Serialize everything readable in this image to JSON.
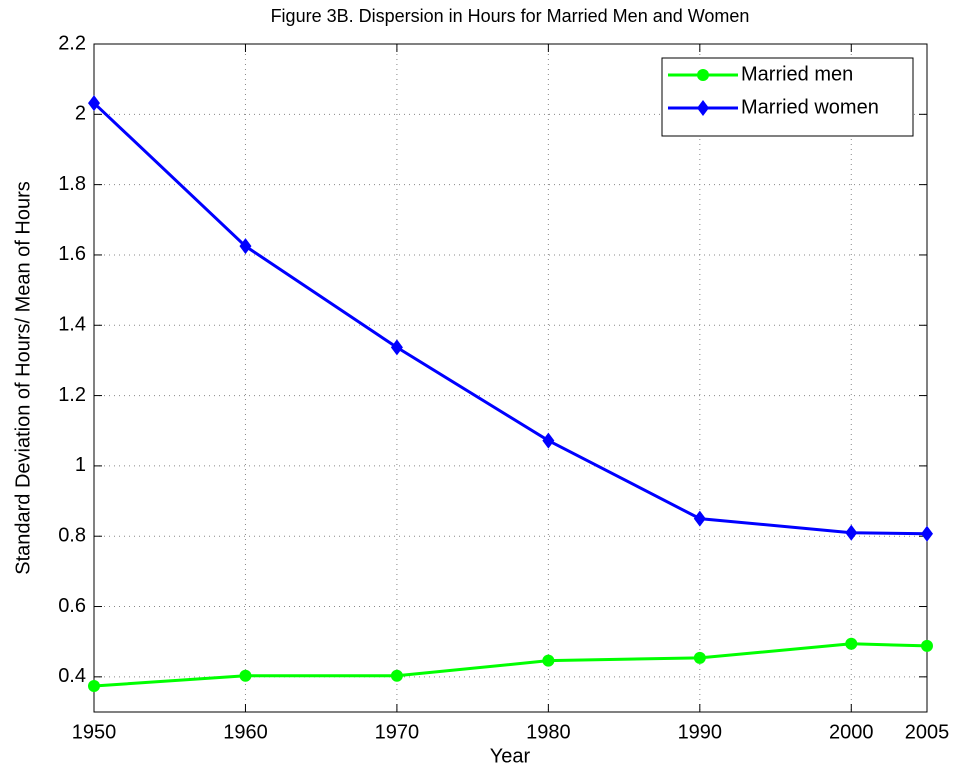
{
  "chart_data": {
    "type": "line",
    "title": "Figure 3B. Dispersion in Hours for Married Men and Women",
    "x_label": "Year",
    "y_label": "Standard Deviation of Hours/ Mean of Hours",
    "x": [
      1950,
      1960,
      1970,
      1980,
      1990,
      2000,
      2005
    ],
    "series": [
      {
        "name": "Married men",
        "color": "#00ff00",
        "marker": "circle",
        "values": [
          0.374,
          0.403,
          0.403,
          0.446,
          0.454,
          0.494,
          0.488
        ]
      },
      {
        "name": "Married women",
        "color": "#0000ff",
        "marker": "diamond",
        "values": [
          2.032,
          1.625,
          1.337,
          1.072,
          0.85,
          0.81,
          0.807
        ]
      }
    ],
    "xlim": [
      1950,
      2005
    ],
    "xticks": [
      1950,
      1960,
      1970,
      1980,
      1990,
      2000,
      2005
    ],
    "ylim": [
      0.3,
      2.2
    ],
    "yticks": [
      0.4,
      0.6,
      0.8,
      1,
      1.2,
      1.4,
      1.6,
      1.8,
      2,
      2.2
    ],
    "grid": true,
    "legend": "top-right"
  }
}
